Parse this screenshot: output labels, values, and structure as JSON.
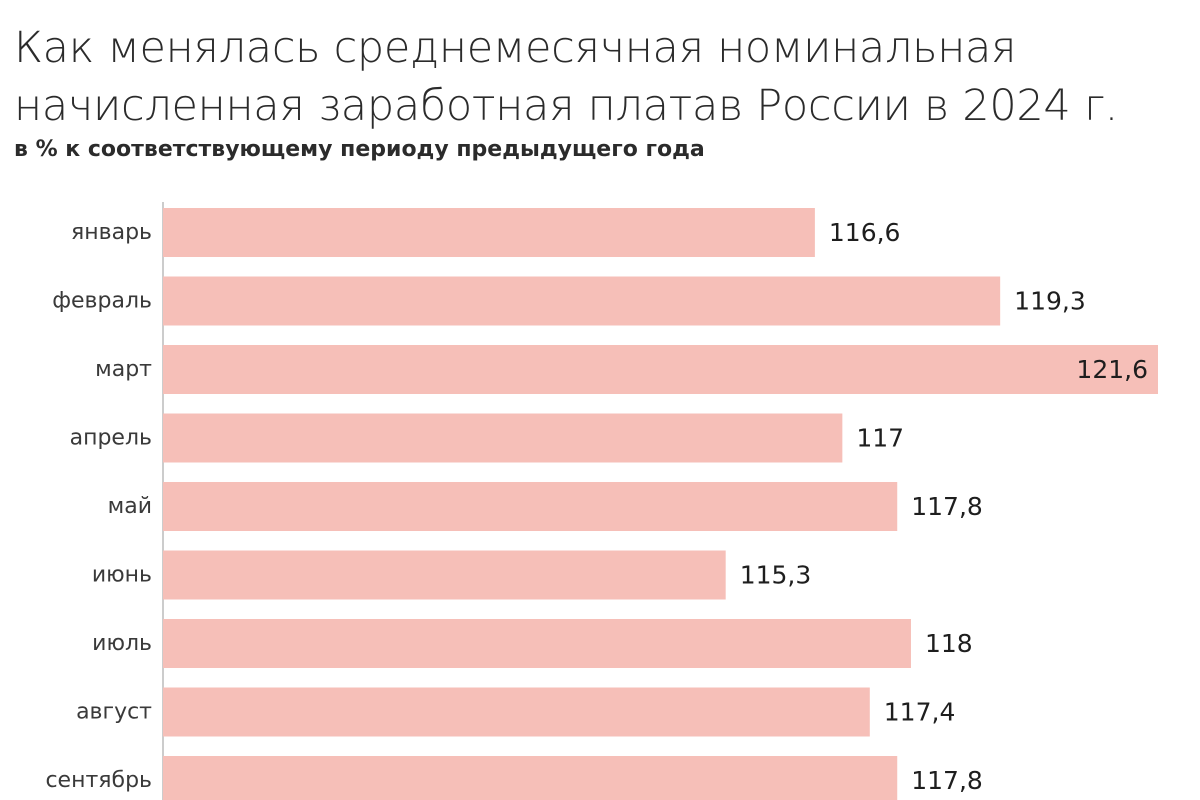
{
  "chart_data": {
    "type": "bar",
    "orientation": "horizontal",
    "title": "Как менялась среднемесячная номинальная начисленная заработная платав России в 2024 г.",
    "title_lines": [
      "Как менялась среднемесячная номинальная",
      "начисленная заработная платав России в 2024 г."
    ],
    "subtitle": "в % к соответствующему периоду предыдущего года",
    "categories": [
      "январь",
      "февраль",
      "март",
      "апрель",
      "май",
      "июнь",
      "июль",
      "август",
      "сентябрь"
    ],
    "values": [
      116.6,
      119.3,
      121.6,
      117,
      117.8,
      115.3,
      118,
      117.4,
      117.8
    ],
    "value_labels": [
      "116,6",
      "119,3",
      "121,6",
      "117",
      "117,8",
      "115,3",
      "118",
      "117,4",
      "117,8"
    ],
    "xlim": [
      107.1,
      121.6
    ],
    "xlabel": "",
    "ylabel": "",
    "grid": false,
    "bar_color": "#f6bfb8"
  }
}
